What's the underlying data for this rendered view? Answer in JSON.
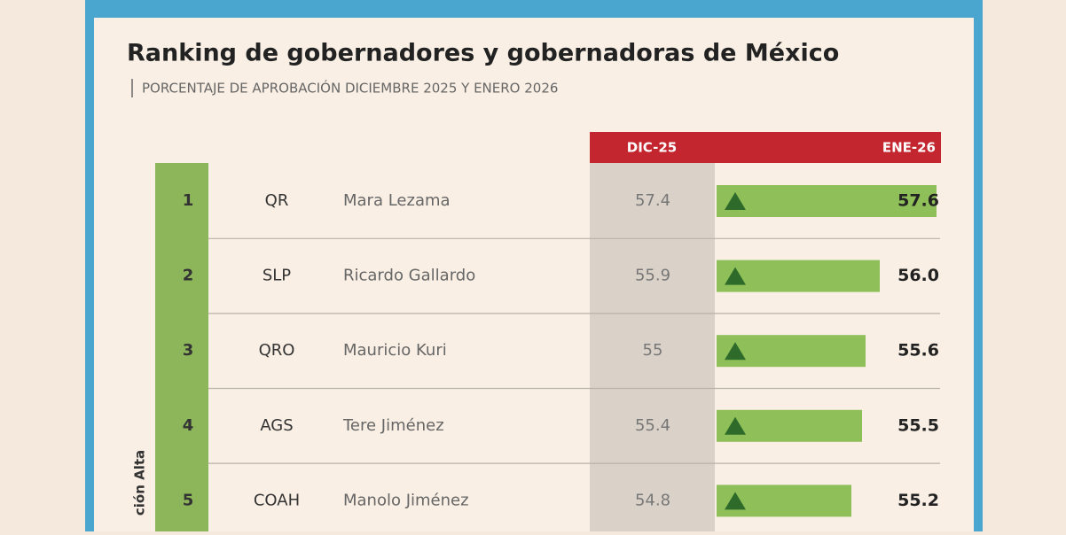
{
  "header": {
    "title": "Ranking de gobernadores y gobernadoras de México",
    "subtitle": "PORCENTAJE DE APROBACIÓN DICIEMBRE 2025 Y ENERO 2026",
    "side_label": "ción Alta"
  },
  "columns": {
    "previous": "DIC-25",
    "current": "ENE-26"
  },
  "rows": [
    {
      "rank": 1,
      "state": "QR",
      "name": "Mara Lezama",
      "dic": 57.4,
      "ene": 57.6,
      "ene_label": "57.6"
    },
    {
      "rank": 2,
      "state": "SLP",
      "name": "Ricardo Gallardo",
      "dic": 55.9,
      "ene": 56.0,
      "ene_label": "56.0"
    },
    {
      "rank": 3,
      "state": "QRO",
      "name": "Mauricio Kuri",
      "dic": 55.0,
      "ene": 55.6,
      "ene_label": "55.6"
    },
    {
      "rank": 4,
      "state": "AGS",
      "name": "Tere Jiménez",
      "dic": 55.4,
      "ene": 55.5,
      "ene_label": "55.5"
    },
    {
      "rank": 5,
      "state": "COAH",
      "name": "Manolo Jiménez",
      "dic": 54.8,
      "ene": 55.2,
      "ene_label": "55.2"
    }
  ]
}
